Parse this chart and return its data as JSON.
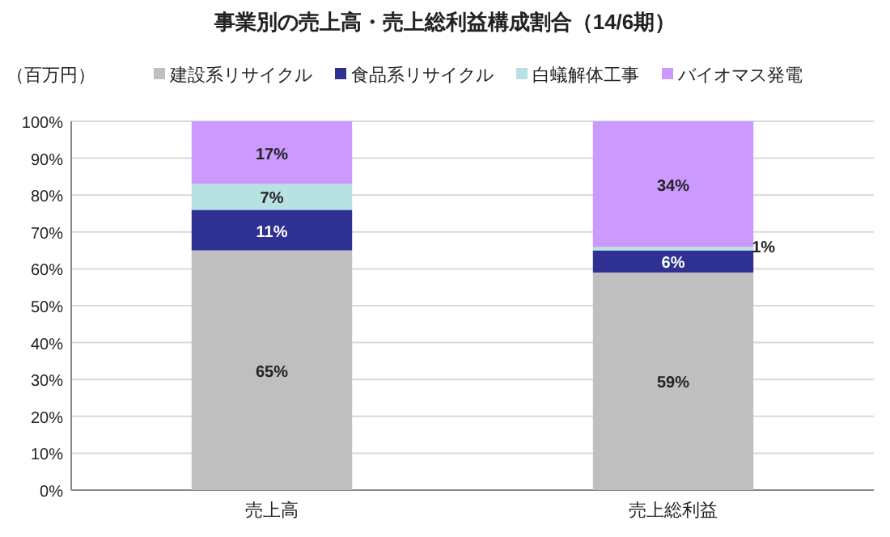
{
  "chart_data": {
    "type": "bar",
    "stacked": true,
    "title": "事業別の売上高・売上総利益構成割合（14/6期）",
    "ylabel": "（百万円）",
    "categories": [
      "売上高",
      "売上総利益"
    ],
    "series": [
      {
        "name": "建設系リサイクル",
        "color": "#bfbfbf",
        "values": [
          65,
          59
        ],
        "value_labels": [
          "65%",
          "59%"
        ]
      },
      {
        "name": "食品系リサイクル",
        "color": "#2e3192",
        "values": [
          11,
          6
        ],
        "value_labels": [
          "11%",
          "6%"
        ]
      },
      {
        "name": "白蟻解体工事",
        "color": "#b7e1e3",
        "values": [
          7,
          1
        ],
        "value_labels": [
          "7%",
          "1%"
        ]
      },
      {
        "name": "バイオマス発電",
        "color": "#cc99ff",
        "values": [
          17,
          34
        ],
        "value_labels": [
          "17%",
          "34%"
        ]
      }
    ],
    "ylim": [
      0,
      100
    ],
    "yticks": [
      {
        "value": 0,
        "label": "0%"
      },
      {
        "value": 10,
        "label": "10%"
      },
      {
        "value": 20,
        "label": "20%"
      },
      {
        "value": 30,
        "label": "30%"
      },
      {
        "value": 40,
        "label": "40%"
      },
      {
        "value": 50,
        "label": "50%"
      },
      {
        "value": 60,
        "label": "60%"
      },
      {
        "value": 70,
        "label": "70%"
      },
      {
        "value": 80,
        "label": "80%"
      },
      {
        "value": 90,
        "label": "90%"
      },
      {
        "value": 100,
        "label": "100%"
      }
    ],
    "grid": "y",
    "legend": "top"
  }
}
